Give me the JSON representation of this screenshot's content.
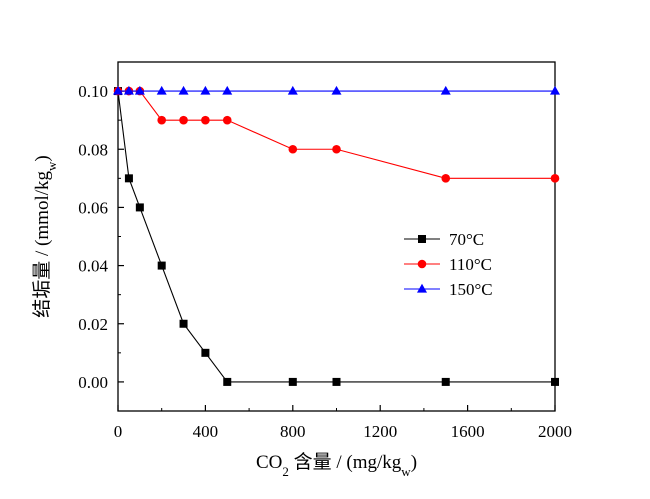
{
  "chart_data": {
    "type": "line",
    "title": "",
    "xlabel": {
      "main": "CO",
      "sub": "2",
      "mid": " 含量 / (mg/kg",
      "sub2": "w",
      "end": ")"
    },
    "ylabel": {
      "main": "结垢量 / (mmol/kg",
      "sub": "w",
      "end": ")"
    },
    "xlim": [
      0,
      2000
    ],
    "ylim": [
      -0.01,
      0.11
    ],
    "xticks": [
      0,
      400,
      800,
      1200,
      1600,
      2000
    ],
    "xtick_labels": [
      "0",
      "400",
      "800",
      "1200",
      "1600",
      "2000"
    ],
    "yticks": [
      0.0,
      0.02,
      0.04,
      0.06,
      0.08,
      0.1
    ],
    "ytick_labels": [
      "0.00",
      "0.02",
      "0.04",
      "0.06",
      "0.08",
      "0.10"
    ],
    "grid": false,
    "legend_position": "center-right",
    "series": [
      {
        "name": "70°C",
        "color": "#000000",
        "marker": "square",
        "x": [
          0,
          50,
          100,
          200,
          300,
          400,
          500,
          800,
          1000,
          1500,
          2000
        ],
        "y": [
          0.1,
          0.07,
          0.06,
          0.04,
          0.02,
          0.01,
          0.0,
          0.0,
          0.0,
          0.0,
          0.0
        ]
      },
      {
        "name": "110°C",
        "color": "#ff0000",
        "marker": "circle",
        "x": [
          0,
          50,
          100,
          200,
          300,
          400,
          500,
          800,
          1000,
          1500,
          2000
        ],
        "y": [
          0.1,
          0.1,
          0.1,
          0.09,
          0.09,
          0.09,
          0.09,
          0.08,
          0.08,
          0.07,
          0.07
        ]
      },
      {
        "name": "150°C",
        "color": "#0000ff",
        "marker": "triangle",
        "x": [
          0,
          50,
          100,
          200,
          300,
          400,
          500,
          800,
          1000,
          1500,
          2000
        ],
        "y": [
          0.1,
          0.1,
          0.1,
          0.1,
          0.1,
          0.1,
          0.1,
          0.1,
          0.1,
          0.1,
          0.1
        ]
      }
    ]
  }
}
